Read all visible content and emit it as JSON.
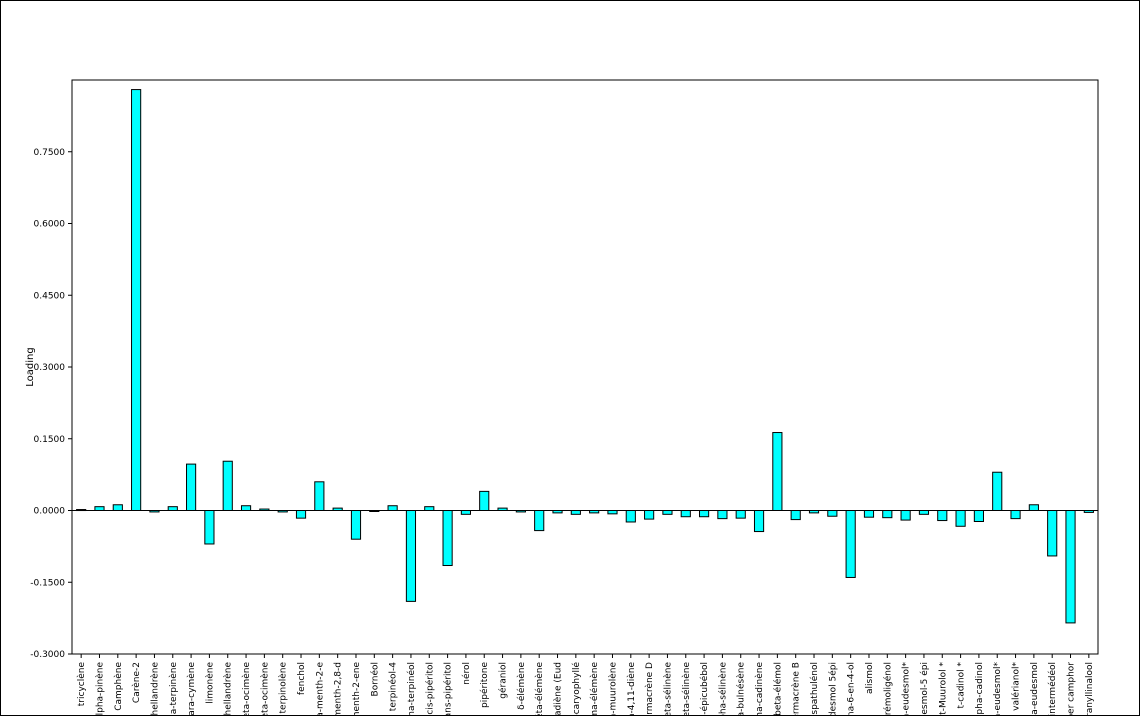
{
  "chart_data": {
    "type": "bar",
    "title": "",
    "xlabel": "",
    "ylabel": "Loading",
    "ylim": [
      -0.3,
      0.9
    ],
    "yticks": [
      -0.3,
      -0.15,
      0.0,
      0.15,
      0.3,
      0.45,
      0.6,
      0.75
    ],
    "ytick_labels": [
      "-0.3000",
      "-0.1500",
      "0.0000",
      "0.1500",
      "0.3000",
      "0.4500",
      "0.6000",
      "0.7500"
    ],
    "grid": false,
    "bar_color": "#00FFFF",
    "bar_edge_color": "#000000",
    "categories": [
      "tricyclène",
      "alpha-pinène",
      "Camphène",
      "Carène-2",
      "phellandrène",
      "ha-terpinène",
      "para-cymène",
      "limonène",
      "phellandrène",
      "eta-ocimène",
      "eta-ocimène",
      "terpinolène",
      "fenchol",
      "a-menth-2-e",
      "menth-2,8-d",
      "menth-2-ene",
      "Bornéol",
      "terpinéol-4",
      "pha-terpinéol",
      "cis-pipéritol",
      "ans-pipéritol",
      "nérol",
      "pipéritone",
      "géraniol",
      "δ-élémène",
      "ēta-élémène",
      "lladiène (Eud",
      "-caryophyllé",
      "ma-élémène",
      "a-muurolène",
      "a-4,11-diène",
      "ermacrène D",
      "beta-sélinène",
      "eta-sélinène",
      "4-épicubébol",
      "pha-sélinène",
      "na-bulnésène",
      "ma-cadinène",
      "beta-élémol",
      "ermacrène B",
      "spathulénol",
      "desmol 5épi",
      "na-6-en-4-ol",
      "alismol",
      "erémoligénol",
      "a-eudesmol*",
      "desmol-5 épi",
      "t-Muurolol *",
      "t-cadinol *",
      "lpha-cadinol",
      "a-eudesmol*",
      "valérianol*",
      "ha-eudesmol",
      "intermédéol",
      "per camphor",
      "eranyllinalool"
    ],
    "values": [
      0.002,
      0.008,
      0.012,
      0.88,
      -0.003,
      0.008,
      0.097,
      -0.07,
      0.103,
      0.01,
      0.003,
      -0.003,
      -0.016,
      0.06,
      0.005,
      -0.06,
      0.0,
      0.01,
      -0.19,
      0.008,
      -0.115,
      -0.008,
      0.04,
      0.005,
      -0.003,
      -0.042,
      -0.005,
      -0.008,
      -0.005,
      -0.007,
      -0.024,
      -0.018,
      -0.008,
      -0.013,
      -0.013,
      -0.017,
      -0.016,
      -0.044,
      0.163,
      -0.019,
      -0.005,
      -0.012,
      -0.14,
      -0.014,
      -0.015,
      -0.02,
      -0.008,
      -0.021,
      -0.033,
      -0.023,
      0.08,
      -0.017,
      0.012,
      -0.095,
      -0.235,
      -0.004
    ]
  }
}
